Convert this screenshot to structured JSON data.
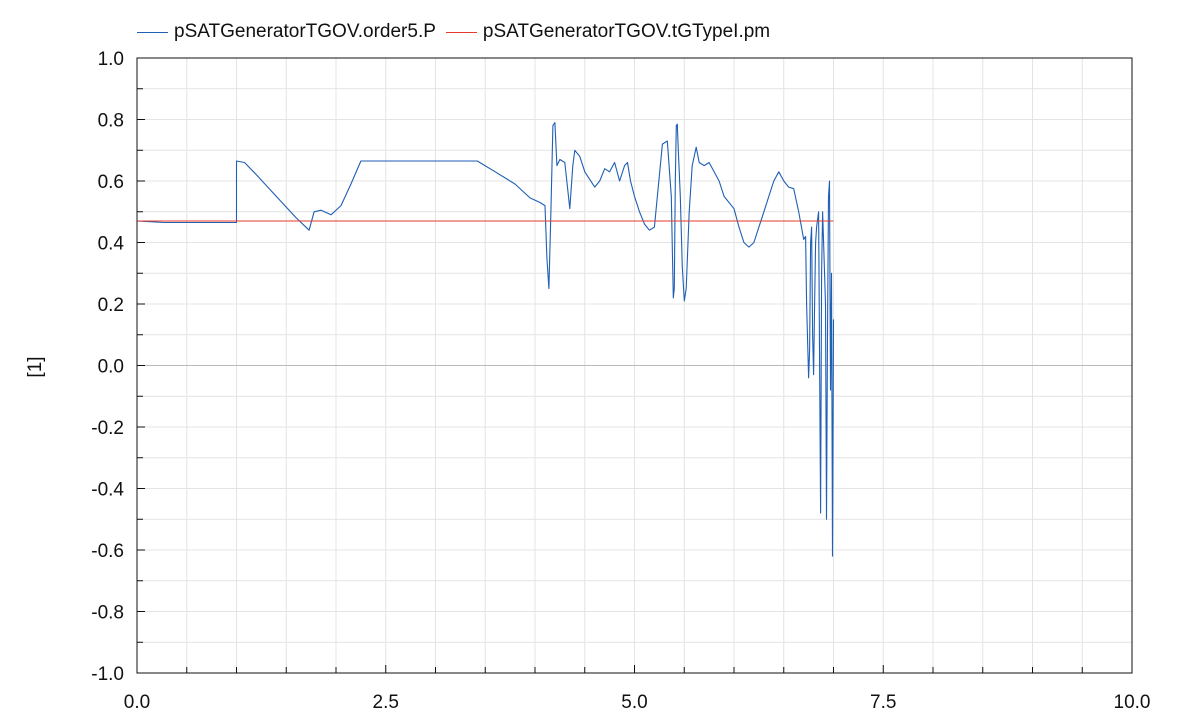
{
  "colors": {
    "series_p": "#1f5fb4",
    "series_pm": "#e53a2e",
    "grid": "#e4e4e4",
    "zero_line": "#b9b9b9",
    "axis": "#111111"
  },
  "chart_data": {
    "type": "line",
    "title": "",
    "xlabel": "",
    "ylabel": "[1]",
    "xlim": [
      0,
      10
    ],
    "ylim": [
      -1,
      1
    ],
    "grid": true,
    "legend_position": "top-left",
    "x_tick_labels": [
      "0.0",
      "2.5",
      "5.0",
      "7.5",
      "10.0"
    ],
    "y_tick_labels": [
      "1.0",
      "0.8",
      "0.6",
      "0.4",
      "0.2",
      "0.0",
      "-0.2",
      "-0.4",
      "-0.6",
      "-0.8",
      "-1.0"
    ],
    "series": [
      {
        "name": "pSATGeneratorTGOV.order5.P",
        "x": [
          0,
          0.27,
          1.0,
          1.0,
          1.08,
          1.2,
          1.4,
          1.6,
          1.73,
          1.78,
          1.85,
          1.95,
          2.05,
          2.15,
          2.25,
          2.3,
          2.5,
          3.0,
          3.42,
          3.6,
          3.8,
          3.95,
          4.05,
          4.1,
          4.12,
          4.14,
          4.16,
          4.18,
          4.2,
          4.22,
          4.25,
          4.3,
          4.35,
          4.38,
          4.4,
          4.45,
          4.5,
          4.6,
          4.65,
          4.7,
          4.75,
          4.8,
          4.85,
          4.9,
          4.93,
          4.96,
          5.0,
          5.05,
          5.1,
          5.15,
          5.2,
          5.28,
          5.33,
          5.37,
          5.39,
          5.4,
          5.41,
          5.42,
          5.43,
          5.44,
          5.46,
          5.48,
          5.5,
          5.52,
          5.55,
          5.58,
          5.62,
          5.65,
          5.7,
          5.75,
          5.85,
          5.9,
          6.0,
          6.05,
          6.1,
          6.15,
          6.2,
          6.25,
          6.3,
          6.35,
          6.4,
          6.45,
          6.5,
          6.55,
          6.6,
          6.65,
          6.7,
          6.72,
          6.73,
          6.75,
          6.76,
          6.77,
          6.78,
          6.79,
          6.8,
          6.81,
          6.82,
          6.83,
          6.85,
          6.87,
          6.88,
          6.89,
          6.9,
          6.92,
          6.93,
          6.94,
          6.95,
          6.96,
          6.97,
          6.98,
          6.99,
          7.0
        ],
        "y": [
          0.47,
          0.465,
          0.465,
          0.665,
          0.66,
          0.62,
          0.55,
          0.48,
          0.44,
          0.5,
          0.505,
          0.49,
          0.52,
          0.59,
          0.665,
          0.665,
          0.665,
          0.665,
          0.665,
          0.63,
          0.59,
          0.545,
          0.53,
          0.52,
          0.35,
          0.25,
          0.5,
          0.78,
          0.79,
          0.65,
          0.67,
          0.66,
          0.51,
          0.65,
          0.7,
          0.68,
          0.63,
          0.58,
          0.6,
          0.64,
          0.63,
          0.66,
          0.6,
          0.65,
          0.66,
          0.6,
          0.55,
          0.5,
          0.46,
          0.44,
          0.45,
          0.72,
          0.73,
          0.55,
          0.22,
          0.25,
          0.6,
          0.78,
          0.785,
          0.7,
          0.55,
          0.32,
          0.21,
          0.25,
          0.5,
          0.65,
          0.71,
          0.66,
          0.65,
          0.66,
          0.6,
          0.55,
          0.51,
          0.45,
          0.4,
          0.385,
          0.4,
          0.45,
          0.5,
          0.55,
          0.6,
          0.63,
          0.6,
          0.58,
          0.575,
          0.5,
          0.41,
          0.42,
          0.2,
          -0.04,
          0.05,
          0.4,
          0.45,
          0.1,
          -0.03,
          0.2,
          0.4,
          0.45,
          0.5,
          -0.48,
          0.3,
          0.5,
          0.4,
          0.2,
          -0.5,
          0.1,
          0.55,
          0.6,
          -0.08,
          0.3,
          -0.62,
          0.15
        ]
      },
      {
        "name": "pSATGeneratorTGOV.tGTypeI.pm",
        "x": [
          0,
          7.0
        ],
        "y": [
          0.47,
          0.47
        ]
      }
    ]
  }
}
